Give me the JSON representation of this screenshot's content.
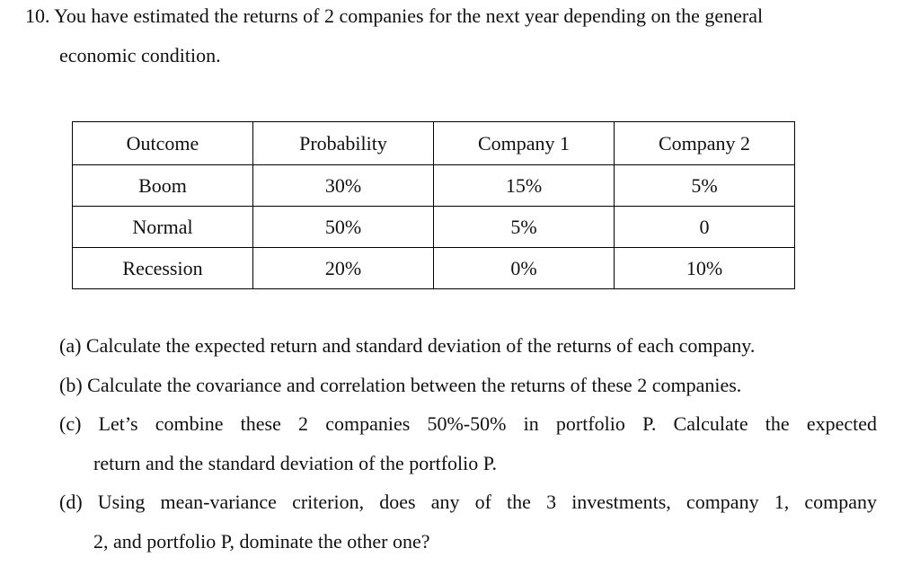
{
  "question": {
    "line1": "10. You have estimated the returns of 2 companies for the next year depending on the general",
    "line2": "economic condition."
  },
  "table": {
    "headers": [
      "Outcome",
      "Probability",
      "Company 1",
      "Company 2"
    ],
    "rows": [
      [
        "Boom",
        "30%",
        "15%",
        "5%"
      ],
      [
        "Normal",
        "50%",
        "5%",
        "0"
      ],
      [
        "Recession",
        "20%",
        "0%",
        "10%"
      ]
    ]
  },
  "parts": {
    "a": "(a) Calculate the expected return and standard deviation of the returns of each company.",
    "b": "(b) Calculate the covariance and correlation between the returns of these 2 companies.",
    "c1": "(c) Let’s combine these 2 companies 50%-50% in portfolio P. Calculate the expected",
    "c2": "return and the standard deviation of the portfolio P.",
    "d1": "(d) Using mean-variance criterion, does any of the 3 investments, company 1, company",
    "d2": "2, and portfolio P, dominate the other one?"
  }
}
